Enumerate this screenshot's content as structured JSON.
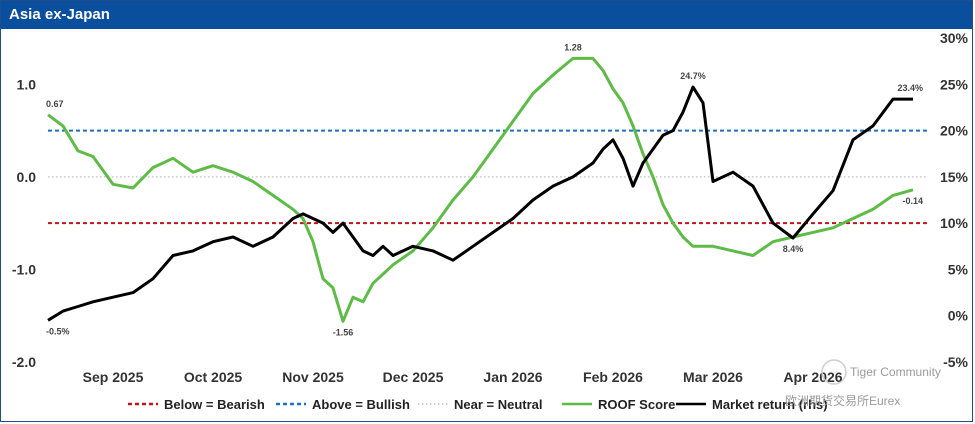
{
  "chart_data": {
    "type": "line",
    "title": "Asia ex-Japan",
    "left_axis": {
      "ticks": [
        "1.0",
        "0.0",
        "-1.0",
        "-2.0"
      ],
      "tick_values": [
        1.0,
        0.0,
        -1.0,
        -2.0
      ],
      "range": [
        -2.0,
        1.5
      ]
    },
    "right_axis": {
      "ticks": [
        "30%",
        "25%",
        "20%",
        "15%",
        "10%",
        "5%",
        "0%",
        "-5%"
      ],
      "tick_values": [
        30,
        25,
        20,
        15,
        10,
        5,
        0,
        -5
      ],
      "range": [
        -5,
        30
      ]
    },
    "x_ticks": [
      "Sep 2025",
      "Oct 2025",
      "Nov 2025",
      "Dec 2025",
      "Jan 2026",
      "Feb 2026",
      "Mar 2026",
      "Apr 2026"
    ],
    "x_tick_positions": [
      2.2,
      3.2,
      4.2,
      5.2,
      6.2,
      7.2,
      8.2,
      9.2
    ],
    "x_range": [
      1.55,
      10.35
    ],
    "reference_lines": [
      {
        "name": "Below = Bearish",
        "value": -0.5,
        "color": "#c0151d",
        "style": "dashed"
      },
      {
        "name": "Above = Bullish",
        "value": 0.5,
        "color": "#1f6fc4",
        "style": "dashed"
      },
      {
        "name": "Near = Neutral",
        "value": 0.0,
        "color": "#bdbdbd",
        "style": "dotted"
      }
    ],
    "series": [
      {
        "name": "ROOF Score",
        "axis": "left",
        "color": "#5dbb46",
        "x": [
          1.55,
          1.7,
          1.85,
          2.0,
          2.2,
          2.4,
          2.6,
          2.8,
          3.0,
          3.2,
          3.4,
          3.6,
          3.8,
          4.0,
          4.1,
          4.2,
          4.3,
          4.4,
          4.5,
          4.6,
          4.7,
          4.8,
          4.9,
          5.0,
          5.2,
          5.4,
          5.6,
          5.8,
          6.0,
          6.2,
          6.4,
          6.6,
          6.8,
          7.0,
          7.1,
          7.2,
          7.3,
          7.4,
          7.5,
          7.6,
          7.7,
          7.8,
          7.9,
          8.0,
          8.2,
          8.4,
          8.6,
          8.8,
          9.0,
          9.2,
          9.4,
          9.6,
          9.8,
          10.0,
          10.2
        ],
        "values": [
          0.67,
          0.55,
          0.28,
          0.22,
          -0.08,
          -0.12,
          0.1,
          0.2,
          0.05,
          0.12,
          0.05,
          -0.05,
          -0.2,
          -0.35,
          -0.45,
          -0.7,
          -1.1,
          -1.2,
          -1.56,
          -1.3,
          -1.35,
          -1.15,
          -1.05,
          -0.95,
          -0.8,
          -0.55,
          -0.25,
          0.0,
          0.3,
          0.6,
          0.9,
          1.1,
          1.28,
          1.28,
          1.15,
          0.95,
          0.8,
          0.55,
          0.25,
          0.0,
          -0.3,
          -0.5,
          -0.65,
          -0.75,
          -0.75,
          -0.8,
          -0.85,
          -0.7,
          -0.65,
          -0.6,
          -0.55,
          -0.45,
          -0.35,
          -0.2,
          -0.14
        ]
      },
      {
        "name": "Market return (rhs)",
        "axis": "right",
        "color": "#000000",
        "x": [
          1.55,
          1.7,
          1.85,
          2.0,
          2.2,
          2.4,
          2.6,
          2.8,
          3.0,
          3.2,
          3.4,
          3.6,
          3.8,
          4.0,
          4.1,
          4.2,
          4.3,
          4.4,
          4.5,
          4.6,
          4.7,
          4.8,
          4.9,
          5.0,
          5.2,
          5.4,
          5.6,
          5.8,
          6.0,
          6.2,
          6.4,
          6.6,
          6.8,
          7.0,
          7.1,
          7.2,
          7.3,
          7.4,
          7.5,
          7.6,
          7.7,
          7.8,
          7.9,
          8.0,
          8.1,
          8.2,
          8.4,
          8.6,
          8.8,
          9.0,
          9.2,
          9.4,
          9.6,
          9.8,
          10.0,
          10.2
        ],
        "values": [
          -0.5,
          0.5,
          1.0,
          1.5,
          2.0,
          2.5,
          4.0,
          6.5,
          7.0,
          8.0,
          8.5,
          7.5,
          8.5,
          10.5,
          11.0,
          10.5,
          10.0,
          9.0,
          10.0,
          8.5,
          7.0,
          6.5,
          7.5,
          6.5,
          7.5,
          7.0,
          6.0,
          7.5,
          9.0,
          10.5,
          12.5,
          14.0,
          15.0,
          16.5,
          18.0,
          19.0,
          17.0,
          14.0,
          16.5,
          18.0,
          19.5,
          20.0,
          22.0,
          24.7,
          23.0,
          14.5,
          15.5,
          14.0,
          10.0,
          8.4,
          11.0,
          13.5,
          19.0,
          20.5,
          23.4,
          23.4
        ]
      }
    ],
    "annotations": [
      {
        "text": "0.67",
        "series": "ROOF Score",
        "x": 1.55,
        "value": 0.67
      },
      {
        "text": "1.28",
        "series": "ROOF Score",
        "x": 6.8,
        "value": 1.28
      },
      {
        "text": "-1.56",
        "series": "ROOF Score",
        "x": 4.5,
        "value": -1.56
      },
      {
        "text": "-0.14",
        "series": "ROOF Score",
        "x": 10.2,
        "value": -0.14
      },
      {
        "text": "-0.5%",
        "series": "Market return (rhs)",
        "x": 1.55,
        "value": -0.5
      },
      {
        "text": "24.7%",
        "series": "Market return (rhs)",
        "x": 8.0,
        "value": 24.7
      },
      {
        "text": "8.4%",
        "series": "Market return (rhs)",
        "x": 9.0,
        "value": 8.4
      },
      {
        "text": "23.4%",
        "series": "Market return (rhs)",
        "x": 10.2,
        "value": 23.4
      }
    ],
    "legend": {
      "placement": "bottom",
      "items": [
        {
          "label": "Below = Bearish",
          "color": "#c0151d",
          "style": "dashed"
        },
        {
          "label": "Above = Bullish",
          "color": "#1f6fc4",
          "style": "dashed"
        },
        {
          "label": "Near = Neutral",
          "color": "#bdbdbd",
          "style": "dotted"
        },
        {
          "label": "ROOF Score",
          "color": "#5dbb46",
          "style": "solid"
        },
        {
          "label": "Market return (rhs)",
          "color": "#000000",
          "style": "solid"
        }
      ]
    }
  },
  "watermark": {
    "line1": "Tiger Community",
    "line2": "欧洲期货交易所Eurex"
  }
}
